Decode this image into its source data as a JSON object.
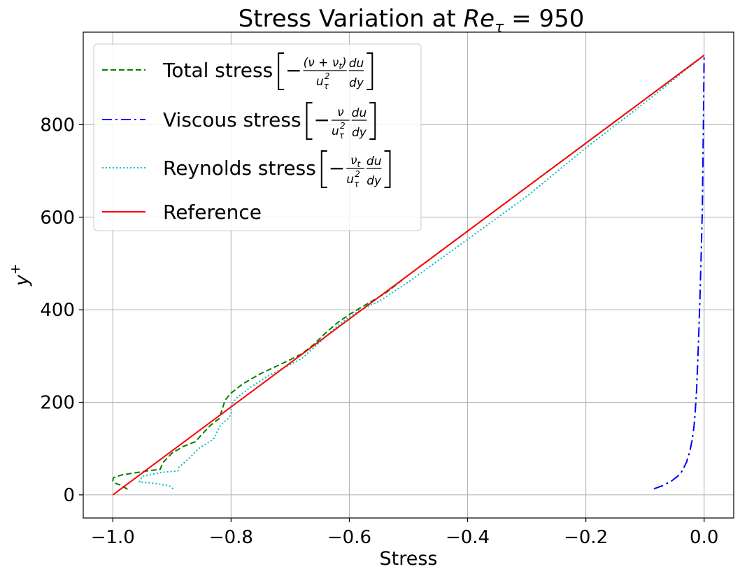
{
  "chart_data": {
    "type": "line",
    "title_prefix": "Stress Variation at ",
    "title_math_base": "Re",
    "title_math_sub": "τ",
    "title_math_rest": " = 950",
    "xlabel": "Stress",
    "ylabel_base": "y",
    "ylabel_sup": "+",
    "xlim": [
      -1.05,
      0.05
    ],
    "ylim": [
      -50,
      1000
    ],
    "xticks": [
      -1.0,
      -0.8,
      -0.6,
      -0.4,
      -0.2,
      0.0
    ],
    "xtick_labels": [
      "−1.0",
      "−0.8",
      "−0.6",
      "−0.4",
      "−0.2",
      "0.0"
    ],
    "yticks": [
      0,
      200,
      400,
      600,
      800
    ],
    "ytick_labels": [
      "0",
      "200",
      "400",
      "600",
      "800"
    ],
    "grid": true,
    "legend_position": "top-left",
    "series": [
      {
        "name": "Total stress",
        "legend_math": {
          "num1": "(ν + ν",
          "num1_sub": "t",
          "num2": ")",
          "den": "u",
          "den_sub": "τ",
          "den_sup": "2",
          "num_d": "du",
          "den_d": "dy"
        },
        "color": "#008000",
        "dash": "8,4",
        "x": [
          -0.975,
          -0.985,
          -0.995,
          -1.0,
          -0.999,
          -0.985,
          -0.96,
          -0.94,
          -0.92,
          -0.915,
          -0.9,
          -0.88,
          -0.86,
          -0.85,
          -0.835,
          -0.82,
          -0.815,
          -0.81,
          -0.8,
          -0.78,
          -0.75,
          -0.72,
          -0.7,
          -0.68,
          -0.66,
          -0.64,
          -0.62,
          -0.6,
          -0.58,
          -0.56,
          -0.54,
          -0.5,
          -0.4,
          -0.3,
          -0.2,
          -0.1,
          0.0
        ],
        "y": [
          12,
          20,
          25,
          30,
          37,
          43,
          48,
          52,
          55,
          70,
          90,
          105,
          115,
          130,
          150,
          165,
          185,
          205,
          220,
          240,
          262,
          280,
          292,
          305,
          325,
          350,
          372,
          390,
          405,
          420,
          435,
          475,
          570,
          665,
          760,
          855,
          950
        ]
      },
      {
        "name": "Viscous stress",
        "legend_math": {
          "num1": "ν",
          "num1_sub": "",
          "num2": "",
          "den": "u",
          "den_sub": "τ",
          "den_sup": "2",
          "num_d": "du",
          "den_d": "dy"
        },
        "color": "#0000ff",
        "dash": "14,5,3,5",
        "x": [
          -0.085,
          -0.07,
          -0.055,
          -0.045,
          -0.038,
          -0.03,
          -0.024,
          -0.02,
          -0.017,
          -0.015,
          -0.013,
          -0.011,
          -0.009,
          -0.007,
          -0.005,
          -0.003,
          -0.002,
          -0.001,
          0.0
        ],
        "y": [
          13,
          20,
          30,
          40,
          50,
          70,
          95,
          120,
          150,
          180,
          220,
          280,
          350,
          430,
          520,
          620,
          720,
          830,
          950
        ]
      },
      {
        "name": "Reynolds stress",
        "legend_math": {
          "num1": "ν",
          "num1_sub": "t",
          "num2": "",
          "den": "u",
          "den_sub": "τ",
          "den_sup": "2",
          "num_d": "du",
          "den_d": "dy"
        },
        "color": "#00bfbf",
        "dash": "2,3",
        "x": [
          -0.898,
          -0.905,
          -0.93,
          -0.955,
          -0.95,
          -0.92,
          -0.89,
          -0.888,
          -0.87,
          -0.855,
          -0.83,
          -0.818,
          -0.805,
          -0.8,
          -0.8,
          -0.79,
          -0.77,
          -0.74,
          -0.71,
          -0.68,
          -0.66,
          -0.64,
          -0.62,
          -0.6,
          -0.58,
          -0.55,
          -0.5,
          -0.4,
          -0.3,
          -0.2,
          -0.1,
          0.0
        ],
        "y": [
          13,
          20,
          25,
          28,
          40,
          48,
          52,
          60,
          80,
          100,
          120,
          150,
          165,
          175,
          195,
          210,
          230,
          255,
          275,
          295,
          318,
          342,
          365,
          385,
          400,
          418,
          460,
          552,
          645,
          750,
          848,
          950
        ]
      },
      {
        "name": "Reference",
        "legend_math": null,
        "color": "#ff0000",
        "dash": "",
        "x": [
          -1.0,
          0.0
        ],
        "y": [
          0,
          950
        ]
      }
    ]
  }
}
